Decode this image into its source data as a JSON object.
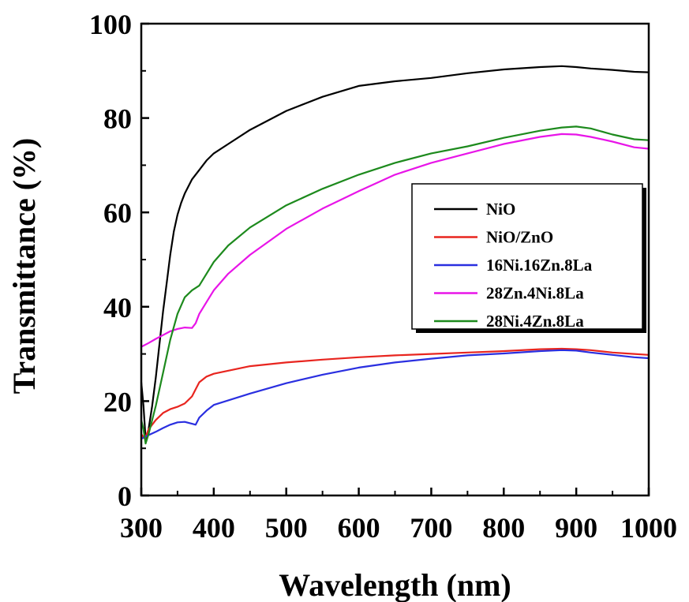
{
  "chart_data": {
    "type": "line",
    "title": "",
    "xlabel": "Wavelength (nm)",
    "ylabel": "Transmittance (%)",
    "xlim": [
      300,
      1000
    ],
    "ylim": [
      0,
      100
    ],
    "xticks": [
      300,
      400,
      500,
      600,
      700,
      800,
      900,
      1000
    ],
    "yticks": [
      0,
      20,
      40,
      60,
      80,
      100
    ],
    "grid": false,
    "legend_position": "center-right",
    "series": [
      {
        "name": "NiO",
        "color": "#000000",
        "x": [
          300,
          303,
          306,
          310,
          315,
          320,
          325,
          330,
          335,
          340,
          345,
          350,
          355,
          360,
          370,
          380,
          390,
          400,
          420,
          450,
          500,
          550,
          600,
          650,
          700,
          750,
          800,
          850,
          880,
          900,
          920,
          950,
          980,
          1000
        ],
        "y": [
          24,
          19,
          12,
          14,
          19,
          25,
          32,
          39,
          45,
          51,
          56,
          59.5,
          62,
          64,
          67,
          69,
          71,
          72.5,
          74.5,
          77.5,
          81.5,
          84.5,
          86.8,
          87.8,
          88.5,
          89.5,
          90.3,
          90.8,
          91,
          90.8,
          90.5,
          90.2,
          89.8,
          89.7
        ]
      },
      {
        "name": "NiO/ZnO",
        "color": "#e8251f",
        "x": [
          300,
          305,
          310,
          320,
          330,
          340,
          350,
          360,
          370,
          375,
          380,
          390,
          400,
          450,
          500,
          550,
          600,
          650,
          700,
          750,
          800,
          850,
          880,
          900,
          920,
          950,
          980,
          1000
        ],
        "y": [
          13,
          12,
          14,
          16,
          17.5,
          18.3,
          18.8,
          19.5,
          21,
          22.5,
          24,
          25.2,
          25.8,
          27.4,
          28.2,
          28.8,
          29.3,
          29.7,
          30,
          30.3,
          30.6,
          31,
          31.1,
          31,
          30.8,
          30.3,
          30,
          29.8
        ]
      },
      {
        "name": "16Ni.16Zn.8La",
        "color": "#2a2fe0",
        "x": [
          300,
          310,
          320,
          330,
          340,
          350,
          360,
          370,
          375,
          380,
          390,
          400,
          450,
          500,
          550,
          600,
          650,
          700,
          750,
          800,
          850,
          880,
          900,
          920,
          950,
          980,
          1000
        ],
        "y": [
          12,
          12.8,
          13.5,
          14.3,
          15,
          15.5,
          15.6,
          15.2,
          15,
          16.5,
          18,
          19.2,
          21.6,
          23.8,
          25.6,
          27.1,
          28.2,
          29,
          29.7,
          30.1,
          30.6,
          30.8,
          30.7,
          30.3,
          29.8,
          29.3,
          29.1
        ]
      },
      {
        "name": "28Zn.4Ni.8La",
        "color": "#e815e8",
        "x": [
          300,
          310,
          320,
          330,
          340,
          350,
          360,
          370,
          375,
          380,
          390,
          400,
          420,
          450,
          500,
          550,
          600,
          650,
          700,
          750,
          800,
          850,
          880,
          900,
          920,
          950,
          980,
          1000
        ],
        "y": [
          31.5,
          32.3,
          33.2,
          34,
          34.8,
          35.3,
          35.6,
          35.5,
          36.5,
          38.5,
          41,
          43.5,
          47,
          51,
          56.5,
          60.8,
          64.5,
          68,
          70.5,
          72.5,
          74.5,
          76,
          76.6,
          76.5,
          76,
          75,
          73.8,
          73.5
        ]
      },
      {
        "name": "28Ni.4Zn.8La",
        "color": "#1d8a1d",
        "x": [
          300,
          303,
          306,
          310,
          320,
          330,
          340,
          350,
          360,
          370,
          375,
          380,
          390,
          400,
          420,
          450,
          500,
          550,
          600,
          650,
          700,
          750,
          800,
          850,
          880,
          900,
          920,
          950,
          980,
          1000
        ],
        "y": [
          16,
          14,
          11,
          13,
          19,
          26,
          33,
          38.5,
          42,
          43.5,
          44,
          44.5,
          47,
          49.5,
          53,
          56.8,
          61.5,
          65,
          68,
          70.5,
          72.5,
          74,
          75.8,
          77.3,
          78,
          78.2,
          77.8,
          76.5,
          75.5,
          75.3
        ]
      }
    ]
  }
}
